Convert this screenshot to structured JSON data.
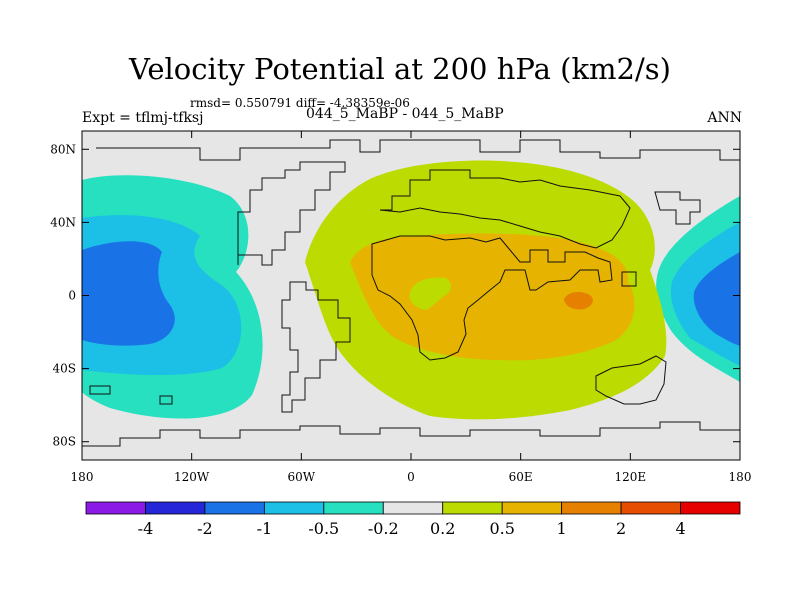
{
  "chart_data": {
    "type": "contour-map",
    "title": "Velocity Potential at 200 hPa (km2/s)",
    "stats_text": "rmsd= 0.550791 diff= -4.38359e-06",
    "expt_text": "Expt = tflmj-tfksj",
    "case_text": "044_5_MaBP - 044_5_MaBP",
    "season_text": "ANN",
    "x_range": [
      -180,
      180
    ],
    "y_range": [
      -90,
      90
    ],
    "x_ticks": [
      {
        "value": -180,
        "label": "180"
      },
      {
        "value": -120,
        "label": "120W"
      },
      {
        "value": -60,
        "label": "60W"
      },
      {
        "value": 0,
        "label": "0"
      },
      {
        "value": 60,
        "label": "60E"
      },
      {
        "value": 120,
        "label": "120E"
      },
      {
        "value": 180,
        "label": "180"
      }
    ],
    "y_ticks": [
      {
        "value": 80,
        "label": "80N"
      },
      {
        "value": 40,
        "label": "40N"
      },
      {
        "value": 0,
        "label": "0"
      },
      {
        "value": -40,
        "label": "40S"
      },
      {
        "value": -80,
        "label": "80S"
      }
    ],
    "colorbar": {
      "colors": [
        "#8b1ae6",
        "#2626d9",
        "#1a73e6",
        "#1cbfe6",
        "#27e0c0",
        "#e6e6e6",
        "#bcdb00",
        "#e6b400",
        "#e68000",
        "#e64d00",
        "#e60000"
      ],
      "labels": [
        "-4",
        "-2",
        "-1",
        "-0.5",
        "-0.2",
        "0.2",
        "0.5",
        "1",
        "2",
        "4"
      ]
    },
    "regions": [
      {
        "name": "west-pacific-negative-outer",
        "level": "-0.2 to -0.5",
        "color": "#27e0c0",
        "center": [
          -152,
          18
        ]
      },
      {
        "name": "west-pacific-negative-mid",
        "level": "-0.5 to -1",
        "color": "#1cbfe6",
        "center": [
          -155,
          10
        ]
      },
      {
        "name": "west-pacific-negative-core",
        "level": "-1 to -2",
        "color": "#1a73e6",
        "center": [
          -162,
          5
        ]
      },
      {
        "name": "east-pacific-negative-outer",
        "level": "-0.2 to -0.5",
        "color": "#27e0c0",
        "center": [
          170,
          5
        ]
      },
      {
        "name": "east-pacific-negative-mid",
        "level": "-0.5 to -1",
        "color": "#1cbfe6",
        "center": [
          172,
          2
        ]
      },
      {
        "name": "east-pacific-negative-core",
        "level": "-1 to -2",
        "color": "#1a73e6",
        "center": [
          175,
          0
        ]
      },
      {
        "name": "africa-positive-outer",
        "level": "0.2 to 0.5",
        "color": "#bcdb00",
        "center": [
          40,
          10
        ]
      },
      {
        "name": "africa-positive-mid",
        "level": "0.5 to 1",
        "color": "#e6b400",
        "center": [
          45,
          5
        ]
      },
      {
        "name": "indian-ocean-positive-core",
        "level": "1 to 2",
        "color": "#e68000",
        "center": [
          92,
          -2
        ]
      },
      {
        "name": "central-africa-minimum",
        "level": "0.2 to 0.5",
        "color": "#bcdb00",
        "center": [
          10,
          5
        ]
      }
    ]
  }
}
